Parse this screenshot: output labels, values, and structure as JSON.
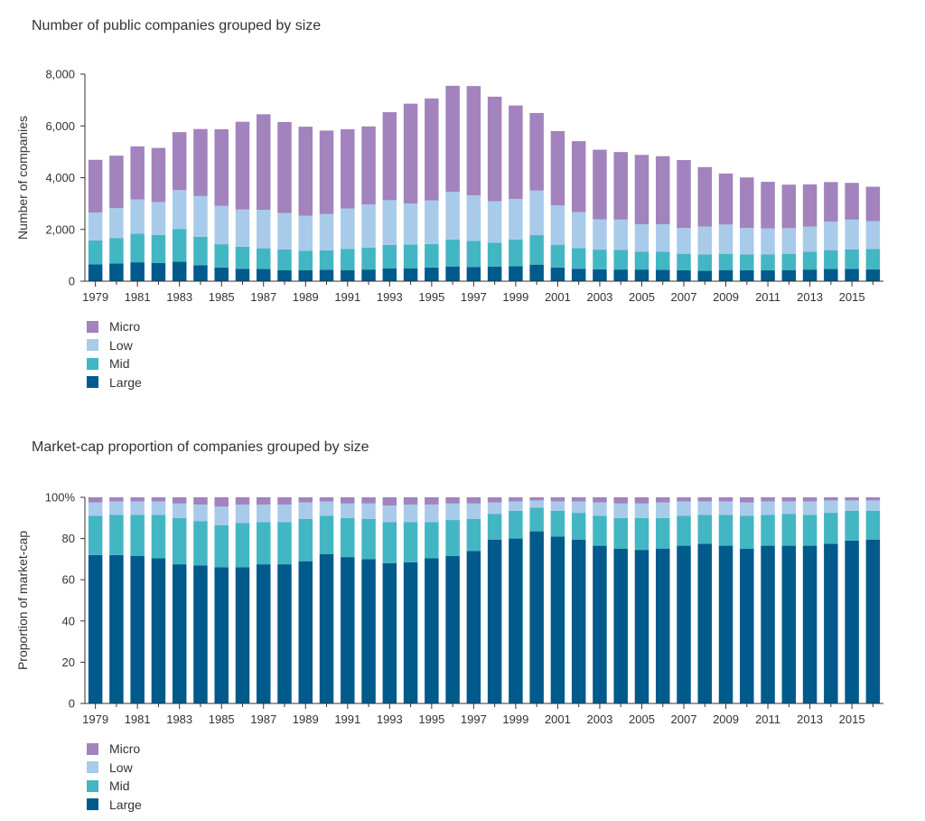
{
  "colors": {
    "Micro": "#a283bd",
    "Low": "#a9cbea",
    "Mid": "#43b6c4",
    "Large": "#005a8c"
  },
  "chart_data": [
    {
      "type": "bar",
      "stacked": true,
      "title": "Number of public companies grouped by size",
      "xlabel": "",
      "ylabel": "Number of companies",
      "ylim": [
        0,
        8000
      ],
      "yticks": [
        "0",
        "2,000",
        "4,000",
        "6,000",
        "8,000"
      ],
      "ytick_values": [
        0,
        2000,
        4000,
        6000,
        8000
      ],
      "x": [
        1979,
        1980,
        1981,
        1982,
        1983,
        1984,
        1985,
        1986,
        1987,
        1988,
        1989,
        1990,
        1991,
        1992,
        1993,
        1994,
        1995,
        1996,
        1997,
        1998,
        1999,
        2000,
        2001,
        2002,
        2003,
        2004,
        2005,
        2006,
        2007,
        2008,
        2009,
        2010,
        2011,
        2012,
        2013,
        2014,
        2015,
        2016
      ],
      "xtick_labels": [
        "1979",
        "1981",
        "1983",
        "1985",
        "1987",
        "1989",
        "1991",
        "1993",
        "1995",
        "1997",
        "1999",
        "2001",
        "2003",
        "2005",
        "2007",
        "2009",
        "2011",
        "2013",
        "2015"
      ],
      "grid": false,
      "legend_position": "bottom-left",
      "series": [
        {
          "name": "Large",
          "values": [
            650,
            680,
            730,
            700,
            750,
            620,
            530,
            480,
            470,
            430,
            430,
            440,
            430,
            450,
            500,
            500,
            530,
            570,
            550,
            560,
            580,
            640,
            530,
            480,
            460,
            450,
            450,
            440,
            420,
            400,
            430,
            420,
            420,
            430,
            450,
            470,
            470,
            460
          ]
        },
        {
          "name": "Mid",
          "values": [
            930,
            990,
            1110,
            1090,
            1270,
            1100,
            900,
            850,
            800,
            800,
            750,
            750,
            820,
            850,
            900,
            920,
            910,
            1040,
            1010,
            930,
            1030,
            1140,
            880,
            800,
            760,
            760,
            690,
            700,
            640,
            630,
            630,
            620,
            620,
            630,
            690,
            730,
            760,
            780
          ]
        },
        {
          "name": "Low",
          "values": [
            1070,
            1150,
            1320,
            1270,
            1500,
            1570,
            1480,
            1440,
            1490,
            1400,
            1350,
            1410,
            1560,
            1670,
            1730,
            1580,
            1680,
            1840,
            1760,
            1600,
            1570,
            1720,
            1520,
            1390,
            1170,
            1170,
            1060,
            1060,
            1000,
            1080,
            1130,
            1020,
            1000,
            990,
            970,
            1100,
            1150,
            1080
          ]
        },
        {
          "name": "Micro",
          "values": [
            2040,
            2030,
            2050,
            2090,
            2240,
            2590,
            2960,
            3390,
            3690,
            3520,
            3440,
            3220,
            3060,
            3010,
            3400,
            3860,
            3940,
            4100,
            4220,
            4040,
            3610,
            3000,
            2870,
            2740,
            2690,
            2610,
            2680,
            2630,
            2620,
            2300,
            1970,
            1950,
            1800,
            1680,
            1630,
            1530,
            1420,
            1330
          ]
        }
      ]
    },
    {
      "type": "bar",
      "stacked": true,
      "title": "Market-cap proportion of companies grouped by size",
      "xlabel": "",
      "ylabel": "Proportion of market-cap",
      "ylim": [
        0,
        100
      ],
      "yticks": [
        "0",
        "20",
        "40",
        "60",
        "80",
        "100%"
      ],
      "ytick_values": [
        0,
        20,
        40,
        60,
        80,
        100
      ],
      "x": [
        1979,
        1980,
        1981,
        1982,
        1983,
        1984,
        1985,
        1986,
        1987,
        1988,
        1989,
        1990,
        1991,
        1992,
        1993,
        1994,
        1995,
        1996,
        1997,
        1998,
        1999,
        2000,
        2001,
        2002,
        2003,
        2004,
        2005,
        2006,
        2007,
        2008,
        2009,
        2010,
        2011,
        2012,
        2013,
        2014,
        2015,
        2016
      ],
      "xtick_labels": [
        "1979",
        "1981",
        "1983",
        "1985",
        "1987",
        "1989",
        "1991",
        "1993",
        "1995",
        "1997",
        "1999",
        "2001",
        "2003",
        "2005",
        "2007",
        "2009",
        "2011",
        "2013",
        "2015"
      ],
      "grid": false,
      "legend_position": "bottom-left",
      "series": [
        {
          "name": "Large",
          "values": [
            72,
            72,
            71.5,
            70.5,
            67.5,
            67,
            66,
            66,
            67.5,
            67.5,
            69,
            72.5,
            71,
            70,
            68,
            68.5,
            70.5,
            71.5,
            74,
            79.5,
            80,
            83.5,
            81,
            79.5,
            76.5,
            75,
            74.5,
            75,
            76.5,
            77.5,
            76.5,
            75,
            76.5,
            76.5,
            76.5,
            77.5,
            79,
            79.5
          ]
        },
        {
          "name": "Mid",
          "values": [
            19,
            19.5,
            20,
            21,
            22.5,
            21.5,
            20.5,
            21.5,
            20.5,
            20.5,
            20.5,
            18.5,
            19,
            19.5,
            20,
            19.5,
            17.5,
            17.5,
            15.5,
            12.5,
            13.5,
            11.5,
            12.5,
            13,
            14.5,
            15,
            15.5,
            15,
            14.5,
            14,
            15,
            16,
            15,
            15.5,
            15,
            15,
            14.5,
            14
          ]
        },
        {
          "name": "Low",
          "values": [
            6.5,
            6.5,
            6.5,
            6.5,
            7,
            8,
            9,
            9,
            8.5,
            8.5,
            8,
            7,
            7,
            7.5,
            8,
            8.5,
            8.5,
            8,
            7.5,
            5.5,
            4.5,
            3.5,
            4.5,
            5.5,
            6.5,
            7,
            7,
            7.5,
            7,
            6.5,
            6.5,
            6.5,
            6.5,
            6,
            6.5,
            6,
            5,
            5
          ]
        },
        {
          "name": "Micro",
          "values": [
            2.5,
            2,
            2,
            2,
            3,
            3.5,
            4.5,
            3.5,
            3.5,
            3.5,
            2.5,
            2,
            3,
            3,
            4,
            3.5,
            3.5,
            3,
            3,
            2.5,
            2,
            1.5,
            2,
            2,
            2.5,
            3,
            3,
            2.5,
            2,
            2,
            2,
            2.5,
            2,
            2,
            2,
            1.5,
            1.5,
            1.5
          ]
        }
      ]
    }
  ]
}
